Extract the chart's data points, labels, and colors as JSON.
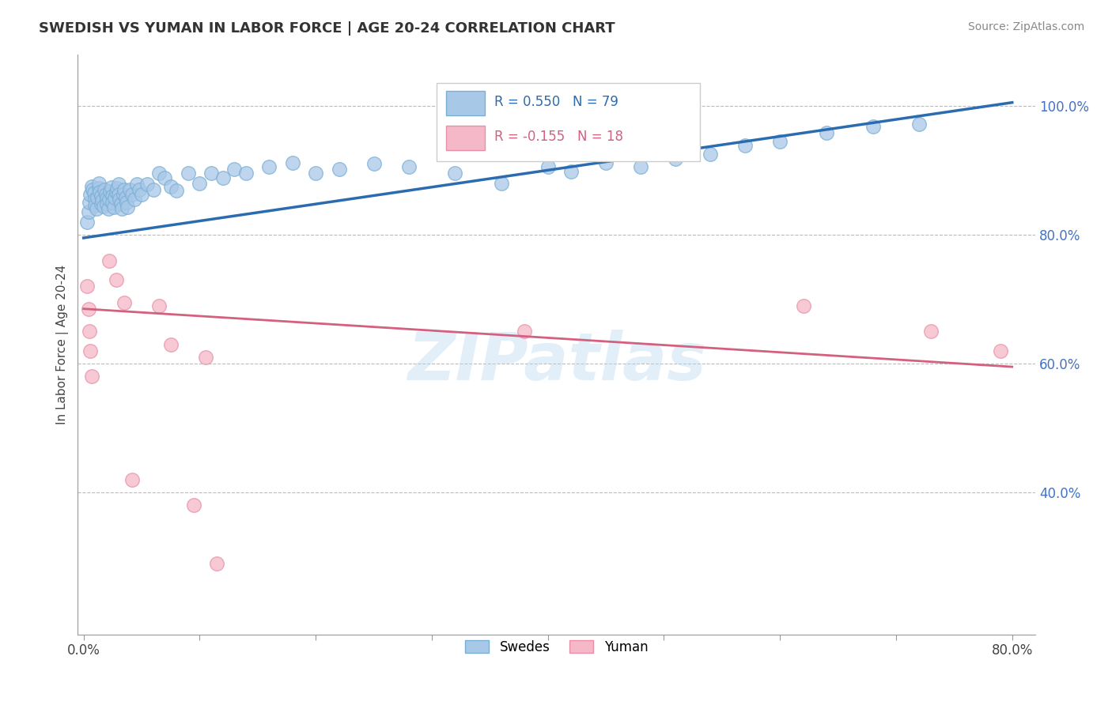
{
  "title": "SWEDISH VS YUMAN IN LABOR FORCE | AGE 20-24 CORRELATION CHART",
  "source_text": "Source: ZipAtlas.com",
  "ylabel": "In Labor Force | Age 20-24",
  "xlim": [
    -0.005,
    0.82
  ],
  "ylim": [
    0.18,
    1.08
  ],
  "xticks": [
    0.0,
    0.1,
    0.2,
    0.3,
    0.4,
    0.5,
    0.6,
    0.7,
    0.8
  ],
  "xticklabels": [
    "0.0%",
    "",
    "",
    "",
    "",
    "",
    "",
    "",
    "80.0%"
  ],
  "ytick_positions": [
    0.4,
    0.6,
    0.8,
    1.0
  ],
  "ytick_labels": [
    "40.0%",
    "60.0%",
    "80.0%",
    "100.0%"
  ],
  "legend_labels": [
    "Swedes",
    "Yuman"
  ],
  "r_swedish": 0.55,
  "n_swedish": 79,
  "r_yuman": -0.155,
  "n_yuman": 18,
  "swedish_color": "#a8c8e8",
  "swedish_edge_color": "#7aafd4",
  "yuman_color": "#f4b8c8",
  "yuman_edge_color": "#e890a8",
  "swedish_line_color": "#2b6cb0",
  "yuman_line_color": "#d46080",
  "watermark_text": "ZIPatlas",
  "sw_line_x0": 0.0,
  "sw_line_y0": 0.795,
  "sw_line_x1": 0.8,
  "sw_line_y1": 1.005,
  "yu_line_x0": 0.0,
  "yu_line_y0": 0.685,
  "yu_line_x1": 0.8,
  "yu_line_y1": 0.595,
  "swedish_x": [
    0.003,
    0.004,
    0.005,
    0.006,
    0.007,
    0.008,
    0.009,
    0.01,
    0.01,
    0.011,
    0.012,
    0.013,
    0.013,
    0.014,
    0.015,
    0.015,
    0.016,
    0.017,
    0.018,
    0.019,
    0.02,
    0.02,
    0.021,
    0.022,
    0.023,
    0.024,
    0.025,
    0.025,
    0.026,
    0.027,
    0.028,
    0.029,
    0.03,
    0.03,
    0.031,
    0.032,
    0.033,
    0.034,
    0.035,
    0.036,
    0.037,
    0.038,
    0.04,
    0.042,
    0.044,
    0.046,
    0.048,
    0.05,
    0.055,
    0.06,
    0.065,
    0.07,
    0.075,
    0.08,
    0.09,
    0.1,
    0.11,
    0.12,
    0.13,
    0.14,
    0.16,
    0.18,
    0.2,
    0.22,
    0.25,
    0.28,
    0.32,
    0.36,
    0.4,
    0.42,
    0.45,
    0.48,
    0.51,
    0.54,
    0.57,
    0.6,
    0.64,
    0.68,
    0.72
  ],
  "swedish_y": [
    0.82,
    0.835,
    0.85,
    0.862,
    0.875,
    0.87,
    0.865,
    0.855,
    0.845,
    0.84,
    0.858,
    0.872,
    0.88,
    0.866,
    0.848,
    0.86,
    0.852,
    0.844,
    0.87,
    0.863,
    0.856,
    0.848,
    0.84,
    0.855,
    0.867,
    0.873,
    0.86,
    0.85,
    0.843,
    0.858,
    0.866,
    0.872,
    0.878,
    0.862,
    0.855,
    0.848,
    0.84,
    0.862,
    0.87,
    0.858,
    0.85,
    0.843,
    0.87,
    0.862,
    0.855,
    0.878,
    0.87,
    0.862,
    0.878,
    0.87,
    0.895,
    0.888,
    0.875,
    0.868,
    0.895,
    0.88,
    0.895,
    0.888,
    0.902,
    0.895,
    0.905,
    0.912,
    0.895,
    0.902,
    0.91,
    0.905,
    0.895,
    0.88,
    0.905,
    0.898,
    0.912,
    0.905,
    0.918,
    0.925,
    0.938,
    0.945,
    0.958,
    0.968,
    0.972
  ],
  "yuman_x": [
    0.003,
    0.004,
    0.005,
    0.006,
    0.007,
    0.022,
    0.028,
    0.035,
    0.042,
    0.065,
    0.075,
    0.095,
    0.105,
    0.115,
    0.38,
    0.62,
    0.73,
    0.79
  ],
  "yuman_y": [
    0.72,
    0.685,
    0.65,
    0.62,
    0.58,
    0.76,
    0.73,
    0.695,
    0.42,
    0.69,
    0.63,
    0.38,
    0.61,
    0.29,
    0.65,
    0.69,
    0.65,
    0.62
  ]
}
